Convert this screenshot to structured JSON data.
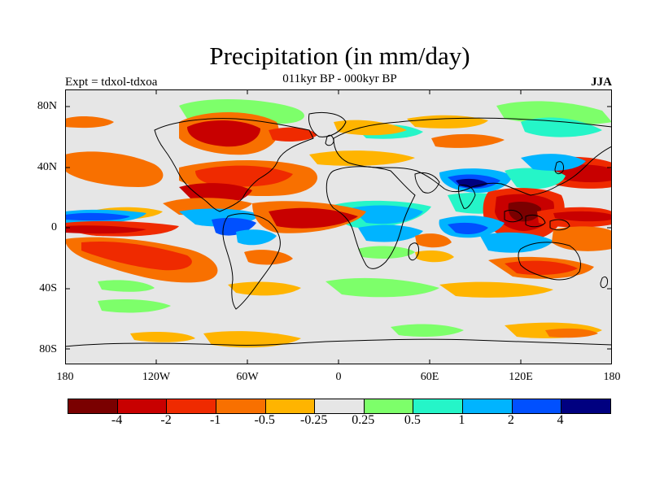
{
  "title": "Precipitation (in mm/day)",
  "subtitle": "011kyr BP - 000kyr BP",
  "experiment_label": "Expt = tdxol-tdxoa",
  "season_label": "JJA",
  "lat_labels": [
    "80N",
    "40N",
    "0",
    "40S",
    "80S"
  ],
  "lon_labels": [
    "180",
    "120W",
    "60W",
    "0",
    "60E",
    "120E",
    "180"
  ],
  "colorbar": {
    "colors": [
      "#7a0000",
      "#c80000",
      "#ef2a00",
      "#f87000",
      "#ffb400",
      "#e6e6e6",
      "#7dff6a",
      "#25f5c8",
      "#00b4ff",
      "#0050ff",
      "#000080"
    ],
    "ticks": [
      "-4",
      "-2",
      "-1",
      "-0.5",
      "-0.25",
      "0.25",
      "0.5",
      "1",
      "2",
      "4"
    ]
  },
  "colors": {
    "background_ocean": "#e6e6e6",
    "land_outline": "#000000"
  }
}
